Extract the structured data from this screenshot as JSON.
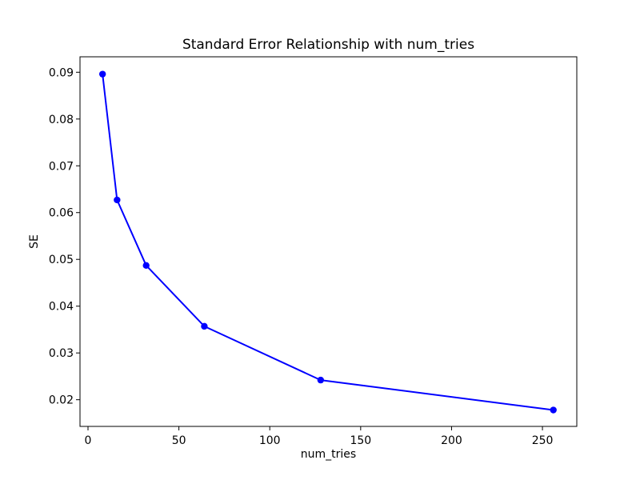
{
  "figure": {
    "background": "#ffffff"
  },
  "chart_data": {
    "type": "line",
    "title": "Standard Error Relationship with num_tries",
    "xlabel": "num_tries",
    "ylabel": "SE",
    "x": [
      8,
      16,
      32,
      64,
      128,
      256
    ],
    "y": [
      0.0896,
      0.0627,
      0.0487,
      0.0357,
      0.0242,
      0.0178
    ],
    "series": [
      {
        "name": "SE",
        "x": [
          8,
          16,
          32,
          64,
          128,
          256
        ],
        "values": [
          0.0896,
          0.0627,
          0.0487,
          0.0357,
          0.0242,
          0.0178
        ]
      }
    ],
    "line_color": "#0000ff",
    "marker": "circle",
    "marker_color": "#0000ff",
    "axis_color": "#000000",
    "background_color": "#ffffff",
    "xlim": [
      -4.4,
      268.9
    ],
    "ylim": [
      0.0143,
      0.0933
    ],
    "xticks": [
      0,
      50,
      100,
      150,
      200,
      250
    ],
    "xtick_labels": [
      "0",
      "50",
      "100",
      "150",
      "200",
      "250"
    ],
    "yticks": [
      0.02,
      0.03,
      0.04,
      0.05,
      0.06,
      0.07,
      0.08,
      0.09
    ],
    "ytick_labels": [
      "0.02",
      "0.03",
      "0.04",
      "0.05",
      "0.06",
      "0.07",
      "0.08",
      "0.09"
    ],
    "grid": false,
    "legend": null
  }
}
